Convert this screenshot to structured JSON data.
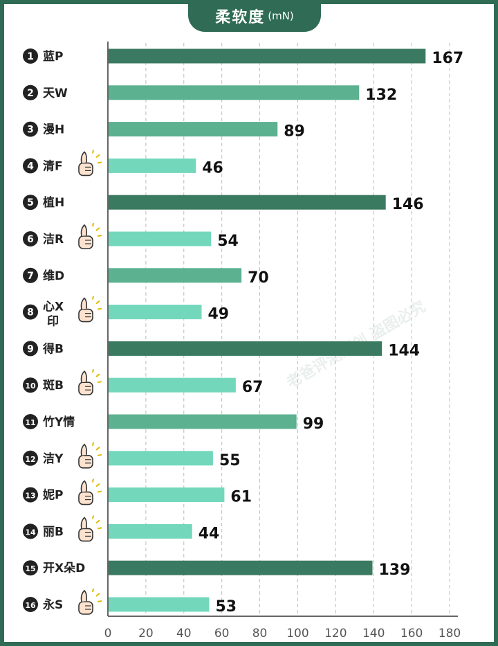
{
  "title": {
    "main": "柔软度",
    "unit": "(mN)"
  },
  "watermark": "老爸评测原创 盗图必究",
  "colors": {
    "dark": "#3a7a60",
    "mid": "#5bb190",
    "light": "#73d8bb",
    "frame": "#2f6b55",
    "axis": "#333333",
    "grid": "#bdbdbd"
  },
  "chart_data": {
    "type": "bar",
    "orientation": "horizontal",
    "title": "柔软度",
    "unit": "(mN)",
    "xlim": [
      0,
      180
    ],
    "x_ticks": [
      0,
      20,
      40,
      60,
      80,
      100,
      120,
      140,
      160,
      180
    ],
    "grid": "vertical dashed",
    "items": [
      {
        "rank": "1",
        "label": "蓝P",
        "value": 167,
        "level": "dark",
        "thumb": false
      },
      {
        "rank": "2",
        "label": "天W",
        "value": 132,
        "level": "mid",
        "thumb": false
      },
      {
        "rank": "3",
        "label": "漫H",
        "value": 89,
        "level": "mid",
        "thumb": false
      },
      {
        "rank": "4",
        "label": "清F",
        "value": 46,
        "level": "light",
        "thumb": true
      },
      {
        "rank": "5",
        "label": "植H",
        "value": 146,
        "level": "dark",
        "thumb": false
      },
      {
        "rank": "6",
        "label": "洁R",
        "value": 54,
        "level": "light",
        "thumb": true
      },
      {
        "rank": "7",
        "label": "维D",
        "value": 70,
        "level": "mid",
        "thumb": false
      },
      {
        "rank": "8",
        "label": "心X印",
        "value": 49,
        "level": "light",
        "thumb": true
      },
      {
        "rank": "9",
        "label": "得B",
        "value": 144,
        "level": "dark",
        "thumb": false
      },
      {
        "rank": "10",
        "label": "斑B",
        "value": 67,
        "level": "light",
        "thumb": true
      },
      {
        "rank": "11",
        "label": "竹Y情",
        "value": 99,
        "level": "mid",
        "thumb": false
      },
      {
        "rank": "12",
        "label": "洁Y",
        "value": 55,
        "level": "light",
        "thumb": true
      },
      {
        "rank": "13",
        "label": "妮P",
        "value": 61,
        "level": "light",
        "thumb": true
      },
      {
        "rank": "14",
        "label": "丽B",
        "value": 44,
        "level": "light",
        "thumb": true
      },
      {
        "rank": "15",
        "label": "开X朵D",
        "value": 139,
        "level": "dark",
        "thumb": false
      },
      {
        "rank": "16",
        "label": "永S",
        "value": 53,
        "level": "light",
        "thumb": true
      }
    ]
  }
}
